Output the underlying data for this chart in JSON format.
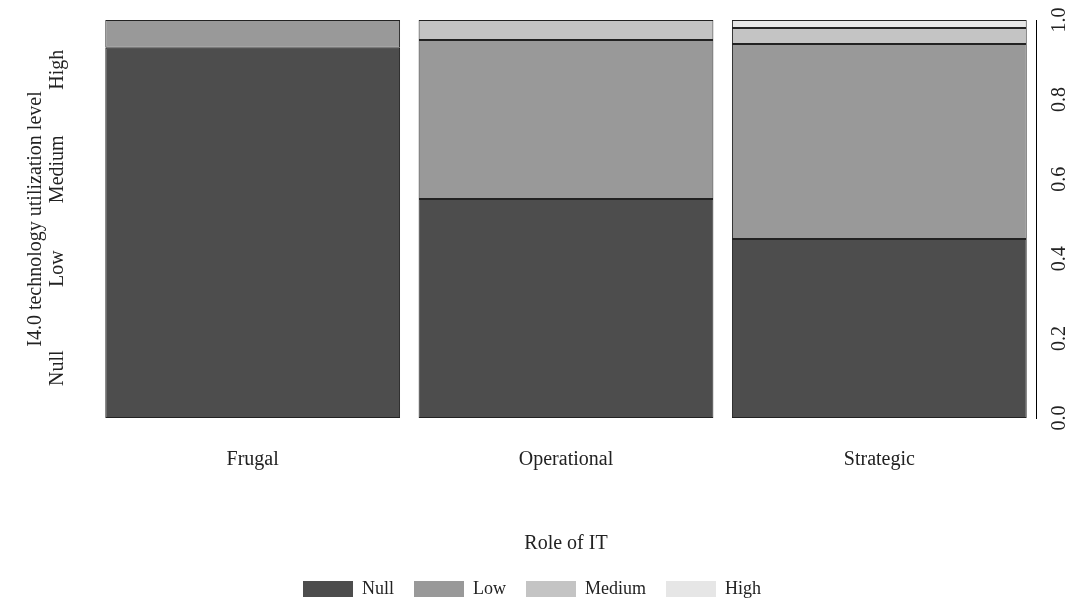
{
  "chart_data": {
    "type": "bar",
    "stacked": true,
    "xlabel": "Role of IT",
    "ylabel": "I4.0 technology utilization level",
    "categories": [
      "Frugal",
      "Operational",
      "Strategic"
    ],
    "series": [
      {
        "name": "Null",
        "color": "#4d4d4d",
        "values": [
          0.93,
          0.55,
          0.45
        ]
      },
      {
        "name": "Low",
        "color": "#999999",
        "values": [
          0.07,
          0.4,
          0.49
        ]
      },
      {
        "name": "Medium",
        "color": "#c4c4c4",
        "values": [
          0,
          0.05,
          0.04
        ]
      },
      {
        "name": "High",
        "color": "#e6e6e6",
        "values": [
          0,
          0,
          0.02
        ]
      }
    ],
    "ylim": [
      0,
      1
    ],
    "yticks": [
      {
        "value": 0,
        "label": "0.0"
      },
      {
        "value": 0.2,
        "label": "0.2"
      },
      {
        "value": 0.4,
        "label": "0.4"
      },
      {
        "value": 0.6,
        "label": "0.6"
      },
      {
        "value": 0.8,
        "label": "0.8"
      },
      {
        "value": 1,
        "label": "1.0"
      }
    ],
    "annotations": [
      "Null",
      "Low",
      "Medium",
      "High"
    ],
    "grid": false,
    "legend": "bottom"
  }
}
